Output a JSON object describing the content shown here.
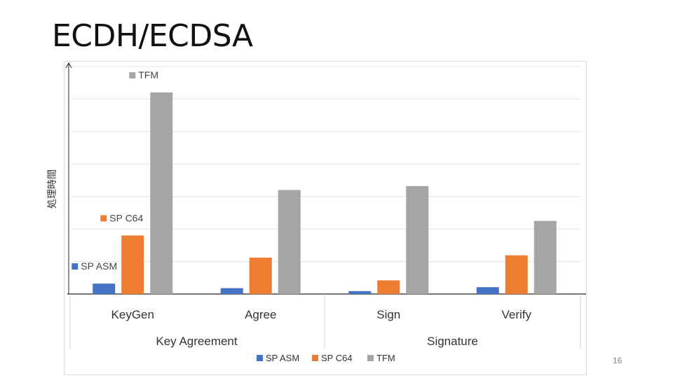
{
  "slide": {
    "title": "ECDH/ECDSA",
    "page_number": "16"
  },
  "chart_data": {
    "type": "bar",
    "categories": [
      "KeyGen",
      "Agree",
      "Sign",
      "Verify"
    ],
    "groups": [
      {
        "label": "Key Agreement",
        "categories": [
          "KeyGen",
          "Agree"
        ]
      },
      {
        "label": "Signature",
        "categories": [
          "Sign",
          "Verify"
        ]
      }
    ],
    "series": [
      {
        "name": "SP ASM",
        "color": "#4472C4",
        "values": [
          3.2,
          1.8,
          0.9,
          2.1
        ]
      },
      {
        "name": "SP C64",
        "color": "#ED7D31",
        "values": [
          18.0,
          11.2,
          4.2,
          11.9
        ]
      },
      {
        "name": "TFM",
        "color": "#A5A5A5",
        "values": [
          62.0,
          32.0,
          33.2,
          22.5
        ]
      }
    ],
    "ylabel": "処理時間",
    "xlabel": "",
    "ylim": [
      0,
      70
    ],
    "grid": true,
    "legend_position": "bottom",
    "inline_labels": [
      {
        "series": "SP ASM",
        "text": "SP ASM"
      },
      {
        "series": "SP C64",
        "text": "SP C64"
      },
      {
        "series": "TFM",
        "text": "TFM"
      }
    ]
  }
}
